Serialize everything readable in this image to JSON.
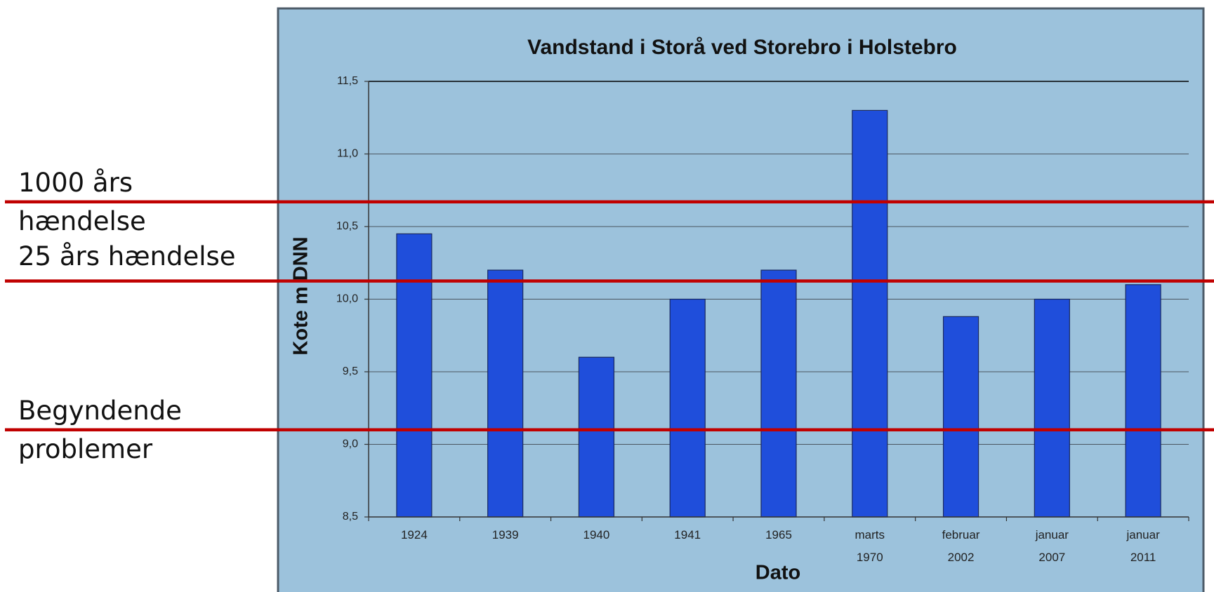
{
  "chart_data": {
    "type": "bar",
    "title": "Vandstand i Storå ved Storebro i Holstebro",
    "y_label": "Kote m DNN",
    "x_label": "Dato",
    "categories": [
      "1924",
      "1939",
      "1940",
      "1941",
      "1965",
      "marts 1970",
      "februar 2002",
      "januar 2007",
      "januar 2011"
    ],
    "values": [
      10.45,
      10.2,
      9.6,
      10.0,
      10.2,
      11.3,
      9.88,
      10.0,
      10.1
    ],
    "color": "#1f4edb",
    "ylim": [
      8.5,
      11.5
    ],
    "yticks": [
      {
        "value": 8.5,
        "label": "8,5"
      },
      {
        "value": 9.0,
        "label": "9,0"
      },
      {
        "value": 9.5,
        "label": "9,5"
      },
      {
        "value": 10.0,
        "label": "10,0"
      },
      {
        "value": 10.5,
        "label": "10,5"
      },
      {
        "value": 11.0,
        "label": "11,0"
      },
      {
        "value": 11.5,
        "label": "11,5"
      }
    ],
    "grid": true,
    "reference_lines": [
      {
        "label": "1000 års hændelse",
        "value": 10.67,
        "color": "#c00000"
      },
      {
        "label": "25 års hændelse",
        "value": 10.125,
        "color": "#c00000"
      },
      {
        "label": "Begyndende problemer",
        "value": 9.1,
        "color": "#c00000"
      }
    ]
  }
}
